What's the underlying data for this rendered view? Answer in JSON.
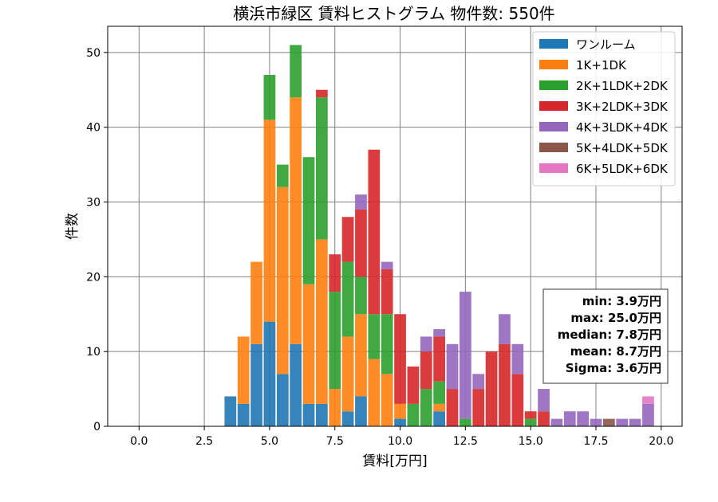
{
  "chart_data": {
    "type": "bar",
    "stacked": true,
    "title": "横浜市緑区 賃料ヒストグラム 物件数: 550件",
    "xlabel": "賃料[万円]",
    "ylabel": "件数",
    "xlim": [
      -1.2,
      20.8
    ],
    "ylim": [
      0,
      53.5
    ],
    "xticks": [
      0.0,
      2.5,
      5.0,
      7.5,
      10.0,
      12.5,
      15.0,
      17.5,
      20.0
    ],
    "xtick_labels": [
      "0.0",
      "2.5",
      "5.0",
      "7.5",
      "10.0",
      "12.5",
      "15.0",
      "17.5",
      "20.0"
    ],
    "yticks": [
      0,
      10,
      20,
      30,
      40,
      50
    ],
    "ytick_labels": [
      "0",
      "10",
      "20",
      "30",
      "40",
      "50"
    ],
    "grid": true,
    "legend_position": "top-right",
    "bin_width": 0.5,
    "x": [
      3.5,
      4.0,
      4.5,
      5.0,
      5.5,
      6.0,
      6.5,
      7.0,
      7.5,
      8.0,
      8.5,
      9.0,
      9.5,
      10.0,
      10.5,
      11.0,
      11.5,
      12.0,
      12.5,
      13.0,
      13.5,
      14.0,
      14.5,
      15.0,
      15.5,
      16.0,
      16.5,
      17.0,
      17.5,
      18.0,
      18.5,
      19.0,
      19.5
    ],
    "series": [
      {
        "name": "ワンルーム",
        "color": "#1f77b4",
        "values": [
          4,
          3,
          11,
          14,
          7,
          11,
          3,
          3,
          0,
          2,
          4,
          0,
          0,
          1,
          0,
          0,
          2,
          0,
          0,
          0,
          0,
          0,
          0,
          0,
          0,
          0,
          0,
          0,
          0,
          0,
          0,
          0,
          0
        ]
      },
      {
        "name": "1K+1DK",
        "color": "#ff7f0e",
        "values": [
          0,
          9,
          11,
          27,
          25,
          33,
          16,
          22,
          5,
          10,
          11,
          9,
          7,
          2,
          0,
          0,
          1,
          0,
          0,
          0,
          0,
          0,
          0,
          0,
          0,
          0,
          0,
          0,
          0,
          0,
          0,
          0,
          0
        ]
      },
      {
        "name": "2K+1LDK+2DK",
        "color": "#2ca02c",
        "values": [
          0,
          0,
          0,
          6,
          3,
          7,
          17,
          19,
          13,
          10,
          5,
          6,
          8,
          0,
          3,
          5,
          3,
          0,
          1,
          0,
          0,
          0,
          0,
          1,
          0,
          0,
          0,
          0,
          0,
          0,
          0,
          0,
          0
        ]
      },
      {
        "name": "3K+2LDK+3DK",
        "color": "#d62728",
        "values": [
          0,
          0,
          0,
          0,
          0,
          0,
          0,
          1,
          5,
          6,
          9,
          22,
          6,
          12,
          5,
          5,
          6,
          5,
          0,
          5,
          10,
          11,
          7,
          1,
          2,
          0,
          0,
          0,
          0,
          0,
          0,
          0,
          0
        ]
      },
      {
        "name": "4K+3LDK+4DK",
        "color": "#9467bd",
        "values": [
          0,
          0,
          0,
          0,
          0,
          0,
          0,
          0,
          0,
          0,
          2,
          0,
          1,
          0,
          0,
          2,
          1,
          6,
          17,
          2,
          0,
          4,
          4,
          0,
          3,
          1,
          2,
          2,
          1,
          0,
          1,
          1,
          3
        ]
      },
      {
        "name": "5K+4LDK+5DK",
        "color": "#8c564b",
        "values": [
          0,
          0,
          0,
          0,
          0,
          0,
          0,
          0,
          0,
          0,
          0,
          0,
          0,
          0,
          0,
          0,
          0,
          0,
          0,
          0,
          0,
          0,
          0,
          0,
          0,
          0,
          0,
          0,
          0,
          1,
          0,
          0,
          0
        ]
      },
      {
        "name": "6K+5LDK+6DK",
        "color": "#e377c2",
        "values": [
          0,
          0,
          0,
          0,
          0,
          0,
          0,
          0,
          0,
          0,
          0,
          0,
          0,
          0,
          0,
          0,
          0,
          0,
          0,
          0,
          0,
          0,
          0,
          0,
          0,
          0,
          0,
          0,
          0,
          0,
          0,
          0,
          1
        ]
      }
    ],
    "annotation_lines": [
      "min: 3.9万円",
      "max: 25.0万円",
      "median: 7.8万円",
      "mean: 8.7万円",
      "Sigma: 3.6万円"
    ]
  }
}
